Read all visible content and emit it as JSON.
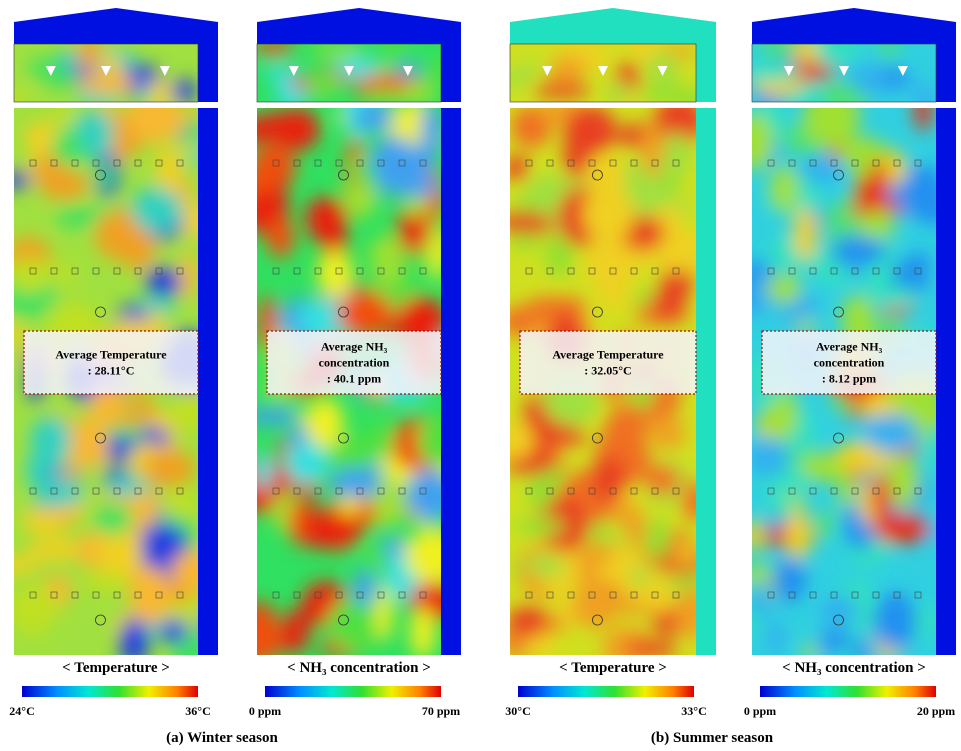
{
  "panels": [
    {
      "title": "< Temperature >",
      "average_lines": [
        "Average Temperature",
        ": 28.11°C"
      ],
      "scale_min": "24°C",
      "scale_max": "36°C"
    },
    {
      "title": "< NH₃ concentration >",
      "average_lines": [
        "Average NH₃",
        "concentration",
        ": 40.1 ppm"
      ],
      "scale_min": "0 ppm",
      "scale_max": "70 ppm"
    },
    {
      "title": "< Temperature >",
      "average_lines": [
        "Average Temperature",
        ": 32.05°C"
      ],
      "scale_min": "30°C",
      "scale_max": "33°C"
    },
    {
      "title": "< NH₃ concentration >",
      "average_lines": [
        "Average NH₃",
        "concentration",
        ": 8.12 ppm"
      ],
      "scale_min": "0 ppm",
      "scale_max": "20 ppm"
    }
  ],
  "captions": [
    "(a) Winter season",
    "(b) Summer season"
  ]
}
